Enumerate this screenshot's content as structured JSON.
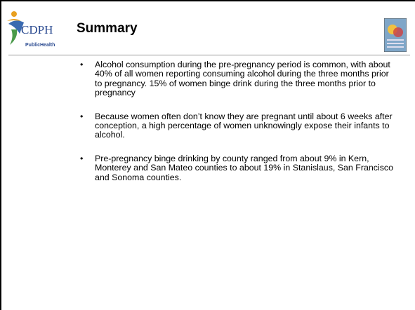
{
  "header": {
    "logo": {
      "mark": "CDPH",
      "subtitle": "PublicHealth"
    },
    "title": "Summary"
  },
  "bullets": [
    "Alcohol consumption during the pre-pregnancy period is common, with about 40% of all women reporting consuming alcohol during the three months prior to pregnancy. 15% of women binge drink during the three months prior to pregnancy",
    "Because women often don’t know they are pregnant until about 6 weeks after conception, a high percentage of women unknowingly expose their infants to alcohol.",
    "Pre-pregnancy binge drinking by county ranged from about 9% in Kern, Monterey and San Mateo counties to about 19% in Stanislaus, San Francisco and Sonoma counties."
  ]
}
